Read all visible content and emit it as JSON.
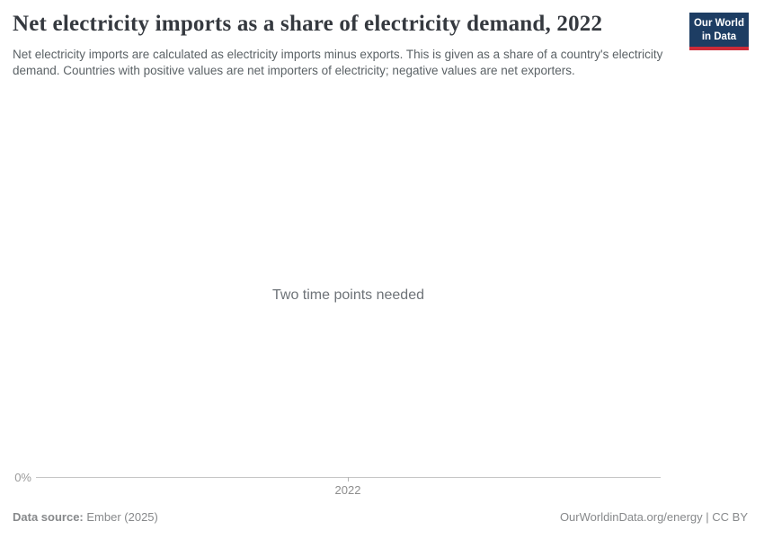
{
  "header": {
    "title": "Net electricity imports as a share of electricity demand, 2022",
    "subtitle": "Net electricity imports are calculated as electricity imports minus exports. This is given as a share of a country's electricity demand. Countries with positive values are net importers of electricity; negative values are net exporters."
  },
  "logo": {
    "line1": "Our World",
    "line2": "in Data",
    "background_color": "#1d3d63",
    "accent_color": "#cc2b38"
  },
  "chart": {
    "empty_state_message": "Two time points needed",
    "y_tick": "0%",
    "x_tick": "2022"
  },
  "chart_data": {
    "type": "line",
    "title": "Net electricity imports as a share of electricity demand, 2022",
    "series": [],
    "x_ticks": [
      "2022"
    ],
    "y_ticks": [
      "0%"
    ],
    "empty_state_message": "Two time points needed",
    "grid": false,
    "legend": "none"
  },
  "footer": {
    "source_label": "Data source:",
    "source_value": "Ember (2025)",
    "license": "OurWorldinData.org/energy | CC BY"
  }
}
